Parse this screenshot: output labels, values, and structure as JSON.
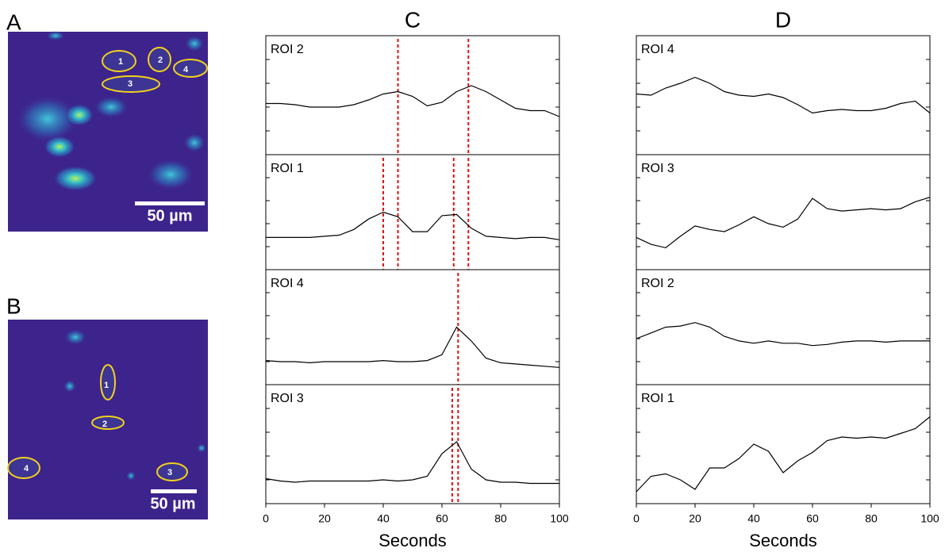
{
  "images": [
    {
      "label": "A",
      "scale_bar": "50 µm",
      "rois": [
        "1",
        "2",
        "3",
        "4"
      ]
    },
    {
      "label": "B",
      "scale_bar": "50 µm",
      "rois": [
        "1",
        "2",
        "3",
        "4"
      ]
    }
  ],
  "chart_data": [
    {
      "type": "line",
      "title": "C",
      "label": "ROI 2",
      "color": "#000000",
      "xlim": [
        0,
        100
      ],
      "ylim": [
        0,
        10
      ],
      "x": [
        0,
        5,
        10,
        15,
        20,
        25,
        30,
        35,
        40,
        45,
        50,
        55,
        60,
        65,
        70,
        75,
        80,
        85,
        90,
        95,
        100
      ],
      "values": [
        4.3,
        4.3,
        4.2,
        4.0,
        4.0,
        4.0,
        4.2,
        4.6,
        5.1,
        5.3,
        4.9,
        4.1,
        4.4,
        5.3,
        5.8,
        5.3,
        4.6,
        3.9,
        3.7,
        3.7,
        3.2
      ],
      "vlines": [
        45,
        69
      ],
      "vline_color": "#e01010"
    },
    {
      "type": "line",
      "label": "ROI 1",
      "color": "#000000",
      "xlim": [
        0,
        100
      ],
      "ylim": [
        0,
        10
      ],
      "x": [
        0,
        5,
        10,
        15,
        20,
        25,
        30,
        35,
        40,
        45,
        50,
        55,
        60,
        65,
        70,
        75,
        80,
        85,
        90,
        95,
        100
      ],
      "values": [
        2.8,
        2.8,
        2.8,
        2.8,
        2.9,
        3.0,
        3.5,
        4.4,
        5.0,
        4.6,
        3.3,
        3.3,
        4.7,
        4.8,
        3.6,
        2.9,
        2.8,
        2.7,
        2.8,
        2.8,
        2.6
      ],
      "vlines": [
        40,
        45,
        64,
        69
      ],
      "vline_color": "#e01010"
    },
    {
      "type": "line",
      "label": "ROI 4",
      "color": "#000000",
      "xlim": [
        0,
        100
      ],
      "ylim": [
        0,
        10
      ],
      "x": [
        0,
        5,
        10,
        15,
        20,
        25,
        30,
        35,
        40,
        45,
        50,
        55,
        60,
        65,
        70,
        75,
        80,
        85,
        90,
        95,
        100
      ],
      "values": [
        2.1,
        2.0,
        2.0,
        1.9,
        2.0,
        2.0,
        2.0,
        2.0,
        2.1,
        2.0,
        2.0,
        2.1,
        2.6,
        5.0,
        3.8,
        2.3,
        1.9,
        1.8,
        1.7,
        1.6,
        1.5
      ],
      "vlines": [
        65.5
      ],
      "vline_color": "#e01010"
    },
    {
      "type": "line",
      "label": "ROI 3",
      "color": "#000000",
      "xlim": [
        0,
        100
      ],
      "ylim": [
        0,
        10
      ],
      "x": [
        0,
        5,
        10,
        15,
        20,
        25,
        30,
        35,
        40,
        45,
        50,
        55,
        60,
        65,
        70,
        75,
        80,
        85,
        90,
        95,
        100
      ],
      "values": [
        2.1,
        1.9,
        1.8,
        1.9,
        1.9,
        1.9,
        1.9,
        1.9,
        2.0,
        1.9,
        2.0,
        2.3,
        4.2,
        5.2,
        2.9,
        2.0,
        1.8,
        1.8,
        1.7,
        1.7,
        1.7
      ],
      "vlines": [
        63.5,
        65.5
      ],
      "vline_color": "#e01010",
      "xticks": [
        0,
        20,
        40,
        60,
        80,
        100
      ],
      "xlabel": "Seconds"
    },
    {
      "type": "line",
      "title": "D",
      "label": "ROI 4",
      "color": "#000000",
      "xlim": [
        0,
        100
      ],
      "ylim": [
        0,
        10
      ],
      "x": [
        0,
        5,
        10,
        15,
        20,
        25,
        30,
        35,
        40,
        45,
        50,
        55,
        60,
        65,
        70,
        75,
        80,
        85,
        90,
        95,
        100
      ],
      "values": [
        5.1,
        5.0,
        5.6,
        6.0,
        6.5,
        6.0,
        5.3,
        5.0,
        4.9,
        5.1,
        4.8,
        4.2,
        3.5,
        3.7,
        3.8,
        3.7,
        3.7,
        3.9,
        4.3,
        4.5,
        3.5
      ]
    },
    {
      "type": "line",
      "label": "ROI 3",
      "color": "#000000",
      "xlim": [
        0,
        100
      ],
      "ylim": [
        0,
        10
      ],
      "x": [
        0,
        5,
        10,
        15,
        20,
        25,
        30,
        35,
        40,
        45,
        50,
        55,
        60,
        65,
        70,
        75,
        80,
        85,
        90,
        95,
        100
      ],
      "values": [
        2.8,
        2.2,
        1.9,
        2.9,
        3.8,
        3.5,
        3.3,
        3.9,
        4.6,
        4.0,
        3.7,
        4.4,
        6.2,
        5.3,
        5.1,
        5.2,
        5.3,
        5.2,
        5.3,
        5.9,
        6.3
      ]
    },
    {
      "type": "line",
      "label": "ROI 2",
      "color": "#000000",
      "xlim": [
        0,
        100
      ],
      "ylim": [
        0,
        10
      ],
      "x": [
        0,
        5,
        10,
        15,
        20,
        25,
        30,
        35,
        40,
        45,
        50,
        55,
        60,
        65,
        70,
        75,
        80,
        85,
        90,
        95,
        100
      ],
      "values": [
        4.0,
        4.5,
        5.0,
        5.1,
        5.4,
        5.0,
        4.2,
        3.8,
        3.6,
        3.8,
        3.6,
        3.6,
        3.4,
        3.5,
        3.7,
        3.8,
        3.8,
        3.7,
        3.8,
        3.8,
        3.8
      ]
    },
    {
      "type": "line",
      "label": "ROI 1",
      "color": "#000000",
      "xlim": [
        0,
        100
      ],
      "ylim": [
        0,
        10
      ],
      "x": [
        0,
        5,
        10,
        15,
        20,
        25,
        30,
        35,
        40,
        45,
        50,
        55,
        60,
        65,
        70,
        75,
        80,
        85,
        90,
        95,
        100
      ],
      "values": [
        1.0,
        2.3,
        2.5,
        2.0,
        1.2,
        3.0,
        3.0,
        3.8,
        5.0,
        4.4,
        2.6,
        3.6,
        4.3,
        5.3,
        5.6,
        5.5,
        5.6,
        5.5,
        5.9,
        6.3,
        7.3
      ],
      "xticks": [
        0,
        20,
        40,
        60,
        80,
        100
      ],
      "xlabel": "Seconds"
    }
  ]
}
